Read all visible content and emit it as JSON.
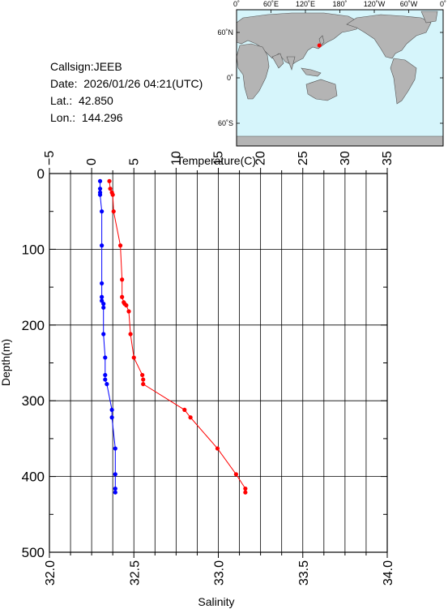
{
  "info": {
    "callsign": "Callsign:JEEB",
    "date": "Date:  2026/01/26 04:21(UTC)",
    "lat": "Lat.:  42.850",
    "lon": "Lon.:  144.296"
  },
  "map": {
    "top_labels": [
      "0˚",
      "60˚E",
      "120˚E",
      "180˚",
      "120˚W",
      "60˚W",
      "0˚"
    ],
    "left_labels": [
      "60˚N",
      "0˚",
      "60˚S"
    ],
    "ocean_color": "#d6f5fb",
    "land_color": "#b4b4b4",
    "station": {
      "lat": 42.85,
      "lon": 144.296
    }
  },
  "chart_data": {
    "type": "line",
    "xlabel_top": "Temperature(C)",
    "xlabel_bottom": "Salinity",
    "ylabel": "Depth(m)",
    "temperature_axis": {
      "range": [
        -5,
        35
      ],
      "ticks": [
        "−5",
        "0",
        "5",
        "10",
        "15",
        "20",
        "25",
        "30",
        "35"
      ]
    },
    "salinity_axis": {
      "range": [
        32.0,
        34.0
      ],
      "ticks": [
        "32.0",
        "32.5",
        "33.0",
        "33.5",
        "34.0"
      ]
    },
    "depth_axis": {
      "range": [
        0,
        500
      ],
      "ticks": [
        "0",
        "100",
        "200",
        "300",
        "400",
        "500"
      ]
    },
    "grid": true,
    "series": [
      {
        "quantity": "temperature",
        "color": "#ff0000",
        "points": [
          [
            2.1,
            10
          ],
          [
            2.2,
            20
          ],
          [
            2.4,
            25
          ],
          [
            2.5,
            28
          ],
          [
            2.6,
            50
          ],
          [
            3.4,
            95
          ],
          [
            3.6,
            140
          ],
          [
            3.6,
            163
          ],
          [
            3.8,
            170
          ],
          [
            3.9,
            172
          ],
          [
            4.1,
            174
          ],
          [
            4.4,
            182
          ],
          [
            4.6,
            212
          ],
          [
            5.0,
            243
          ],
          [
            6.0,
            266
          ],
          [
            6.1,
            272
          ],
          [
            6.1,
            278
          ],
          [
            11.0,
            312
          ],
          [
            11.7,
            322
          ],
          [
            14.9,
            363
          ],
          [
            17.1,
            397
          ],
          [
            18.2,
            416
          ],
          [
            18.2,
            421
          ]
        ]
      },
      {
        "quantity": "salinity",
        "color": "#0000ff",
        "points": [
          [
            32.3,
            10
          ],
          [
            32.3,
            20
          ],
          [
            32.3,
            25
          ],
          [
            32.3,
            28
          ],
          [
            32.31,
            50
          ],
          [
            32.31,
            95
          ],
          [
            32.31,
            145
          ],
          [
            32.31,
            163
          ],
          [
            32.31,
            168
          ],
          [
            32.32,
            172
          ],
          [
            32.32,
            177
          ],
          [
            32.32,
            212
          ],
          [
            32.33,
            243
          ],
          [
            32.33,
            266
          ],
          [
            32.33,
            272
          ],
          [
            32.34,
            278
          ],
          [
            32.37,
            312
          ],
          [
            32.37,
            322
          ],
          [
            32.39,
            363
          ],
          [
            32.39,
            397
          ],
          [
            32.39,
            416
          ],
          [
            32.39,
            421
          ]
        ]
      }
    ]
  }
}
